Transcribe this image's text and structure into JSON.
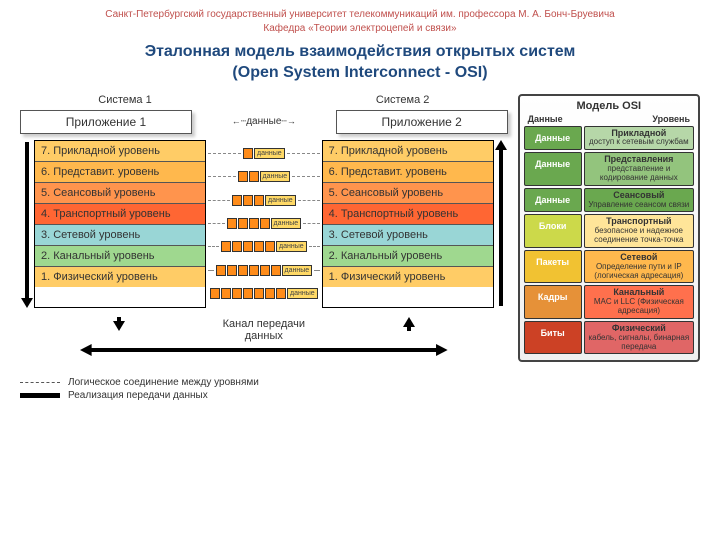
{
  "header": {
    "line1": "Санкт-Петербургский государственный университет телекоммуникаций им. профессора М. А. Бонч-Бруевича",
    "line2": "Кафедра «Теории электроцепей и связи»"
  },
  "title": {
    "line1": "Эталонная модель взаимодействия открытых систем",
    "line2": "(Open System Interconnect - OSI)"
  },
  "systems": {
    "s1": "Система 1",
    "s2": "Система 2"
  },
  "apps": {
    "a1": "Приложение 1",
    "a2": "Приложение 2",
    "mid": "данные"
  },
  "layers": [
    {
      "n": "7. Прикладной уровень",
      "c": "#ffcc66"
    },
    {
      "n": "6. Представит. уровень",
      "c": "#ffb84d"
    },
    {
      "n": "5. Сеансовый уровень",
      "c": "#ff944d"
    },
    {
      "n": "4. Транспортный уровень",
      "c": "#ff6633"
    },
    {
      "n": "3. Сетевой уровень",
      "c": "#99d6d6"
    },
    {
      "n": "2. Канальный уровень",
      "c": "#9fd88f"
    },
    {
      "n": "1. Физический уровень",
      "c": "#ffcc66"
    }
  ],
  "pdu_label": "данные",
  "pdu_headers": [
    1,
    2,
    3,
    4,
    5,
    6,
    7
  ],
  "bottom_channel": "Канал передачи данных",
  "legend": {
    "dash": "Логическое соединение между уровнями",
    "solid": "Реализация передачи данных"
  },
  "sidebar": {
    "title": "Модель OSI",
    "hdr_data": "Данные",
    "hdr_level": "Уровень",
    "rows": [
      {
        "d": "Данные",
        "dc": "#6aa84f",
        "t": "Прикладной",
        "s": "доступ к сетевым службам",
        "lc": "#b6d7a8"
      },
      {
        "d": "Данные",
        "dc": "#6aa84f",
        "t": "Представления",
        "s": "представление и кодирование данных",
        "lc": "#93c47d"
      },
      {
        "d": "Данные",
        "dc": "#6aa84f",
        "t": "Сеансовый",
        "s": "Управление сеансом связи",
        "lc": "#6aa84f"
      },
      {
        "d": "Блоки",
        "dc": "#ccd94a",
        "t": "Транспортный",
        "s": "безопасное и надежное соединение точка-точка",
        "lc": "#ffe599"
      },
      {
        "d": "Пакеты",
        "dc": "#f1c232",
        "t": "Сетевой",
        "s": "Определение пути и IP (логическая адресация)",
        "lc": "#ffb84d"
      },
      {
        "d": "Кадры",
        "dc": "#e69138",
        "t": "Канальный",
        "s": "MAC и LLC (Физическая адресация)",
        "lc": "#ff704d"
      },
      {
        "d": "Биты",
        "dc": "#cc4125",
        "t": "Физический",
        "s": "кабель, сигналы, бинарная передача",
        "lc": "#e06666"
      }
    ]
  },
  "colors": {
    "header_text": "#c0504d",
    "title_text": "#1f497d",
    "pdu_header_fill": "#ff8c1a",
    "pdu_data_fill": "#ffd966"
  }
}
